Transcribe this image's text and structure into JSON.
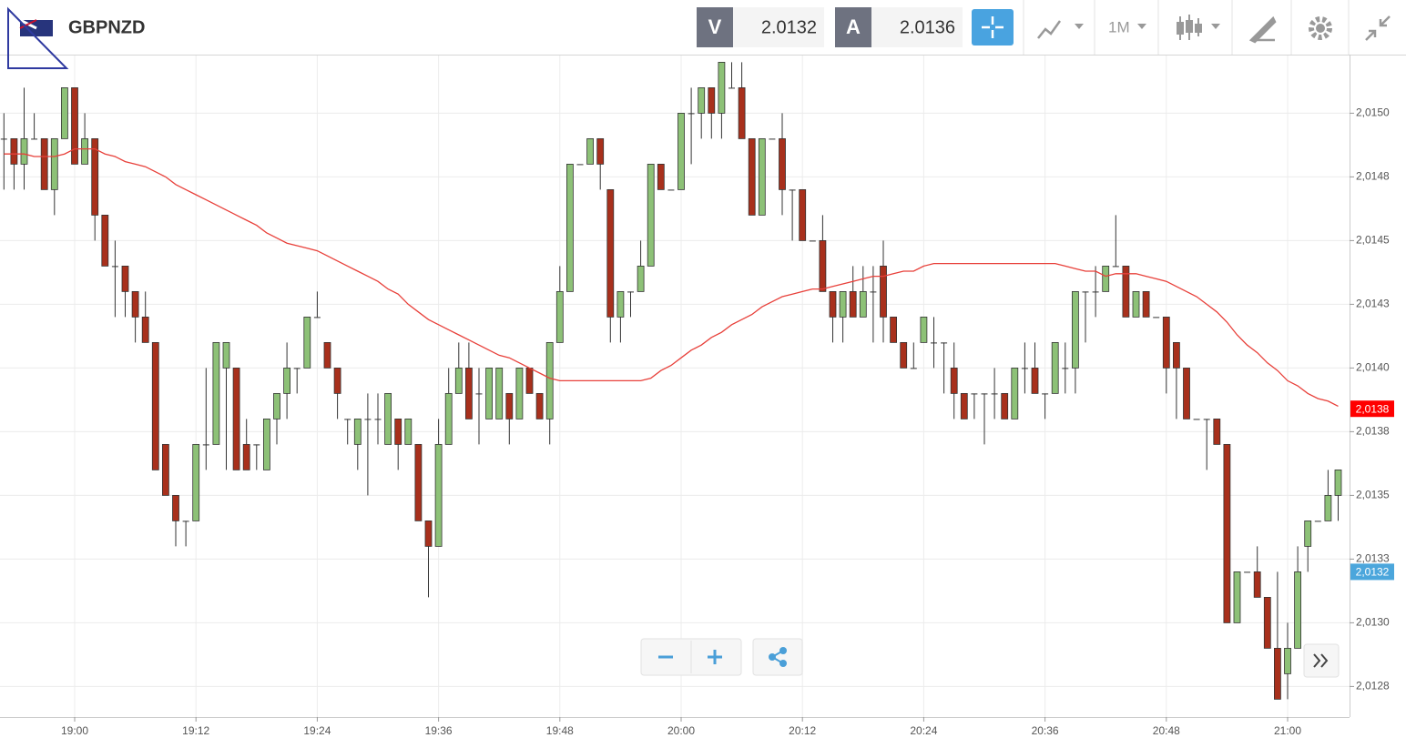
{
  "header": {
    "symbol": "GBPNZD",
    "bid_label": "V",
    "bid": "2.0132",
    "ask_label": "A",
    "ask": "2.0136",
    "timeframe": "1M"
  },
  "chart_data": {
    "type": "candlestick",
    "categories": [
      null,
      null,
      null,
      null,
      null,
      null,
      null,
      "19:00",
      null,
      null,
      null,
      null,
      null,
      null,
      null,
      null,
      null,
      null,
      null,
      "19:12",
      null,
      null,
      null,
      null,
      null,
      null,
      null,
      null,
      null,
      null,
      null,
      "19:24",
      null,
      null,
      null,
      null,
      null,
      null,
      null,
      null,
      null,
      null,
      null,
      "19:36",
      null,
      null,
      null,
      null,
      null,
      null,
      null,
      null,
      null,
      null,
      null,
      "19:48",
      null,
      null,
      null,
      null,
      null,
      null,
      null,
      null,
      null,
      null,
      null,
      "20:00",
      null,
      null,
      null,
      null,
      null,
      null,
      null,
      null,
      null,
      null,
      null,
      "20:12",
      null,
      null,
      null,
      null,
      null,
      null,
      null,
      null,
      null,
      null,
      null,
      "20:24",
      null,
      null,
      null,
      null,
      null,
      null,
      null,
      null,
      null,
      null,
      null,
      "20:36",
      null,
      null,
      null,
      null,
      null,
      null,
      null,
      null,
      null,
      null,
      null,
      "20:48",
      null,
      null,
      null,
      null,
      null,
      null,
      null,
      null,
      null,
      null,
      null,
      "21:00",
      null,
      null,
      null,
      null,
      null
    ],
    "open": [
      2.0149,
      2.0149,
      2.0148,
      2.0149,
      2.0149,
      2.0147,
      2.0149,
      2.0151,
      2.0148,
      2.0149,
      2.0146,
      2.0144,
      2.0144,
      2.0143,
      2.0142,
      2.0141,
      2.0137,
      2.0135,
      2.0134,
      2.0134,
      2.0137,
      2.0137,
      2.014,
      2.014,
      2.0137,
      2.0137,
      2.0136,
      2.0138,
      2.0139,
      2.014,
      2.014,
      2.0142,
      2.0141,
      2.014,
      2.0138,
      2.0137,
      2.0138,
      2.0138,
      2.0137,
      2.0138,
      2.0137,
      2.0137,
      2.0134,
      2.0133,
      2.0137,
      2.0139,
      2.014,
      2.0139,
      2.0138,
      2.0138,
      2.0139,
      2.0138,
      2.014,
      2.0139,
      2.0138,
      2.0141,
      2.0143,
      2.0148,
      2.0148,
      2.0149,
      2.0147,
      2.0142,
      2.0143,
      2.0143,
      2.0144,
      2.0148,
      2.0147,
      2.0147,
      2.015,
      2.015,
      2.0151,
      2.015,
      2.0151,
      2.0151,
      2.0149,
      2.0146,
      2.0149,
      2.0149,
      2.0147,
      2.0147,
      2.0145,
      2.0145,
      2.0143,
      2.0142,
      2.0143,
      2.0142,
      2.0143,
      2.0144,
      2.0142,
      2.0141,
      2.014,
      2.0141,
      2.0141,
      2.0141,
      2.014,
      2.0139,
      2.0139,
      2.0139,
      2.0139,
      2.0139,
      2.0138,
      2.014,
      2.014,
      2.0139,
      2.0139,
      2.014,
      2.014,
      2.0143,
      2.0143,
      2.0143,
      2.0144,
      2.0144,
      2.0142,
      2.0143,
      2.0142,
      2.0142,
      2.0141,
      2.014,
      2.0138,
      2.0138,
      2.0138,
      2.0137,
      2.013,
      2.0132,
      2.0132,
      2.0131,
      2.0129,
      2.0128,
      2.0129,
      2.0133,
      2.0134,
      2.0134,
      2.0135
    ],
    "high": [
      2.015,
      2.0149,
      2.0151,
      2.015,
      2.0149,
      2.0149,
      2.0151,
      2.0151,
      2.015,
      2.0149,
      2.0146,
      2.0145,
      2.0144,
      2.0143,
      2.0143,
      2.0141,
      2.0137,
      2.0135,
      2.0134,
      2.0137,
      2.014,
      2.0141,
      2.0141,
      2.014,
      2.0138,
      2.0137,
      2.0138,
      2.0139,
      2.0141,
      2.014,
      2.0142,
      2.0143,
      2.0141,
      2.014,
      2.0138,
      2.0138,
      2.0139,
      2.0139,
      2.0139,
      2.0138,
      2.0138,
      2.0137,
      2.0134,
      2.0138,
      2.014,
      2.0141,
      2.0141,
      2.014,
      2.014,
      2.014,
      2.0139,
      2.014,
      2.014,
      2.0139,
      2.0141,
      2.0144,
      2.0148,
      2.0148,
      2.0149,
      2.0149,
      2.0147,
      2.0143,
      2.0143,
      2.0145,
      2.0148,
      2.0148,
      2.0147,
      2.015,
      2.0151,
      2.0151,
      2.0151,
      2.0152,
      2.0152,
      2.0152,
      2.0149,
      2.0149,
      2.0149,
      2.015,
      2.0147,
      2.0147,
      2.0145,
      2.0146,
      2.0143,
      2.0143,
      2.0144,
      2.0144,
      2.0144,
      2.0145,
      2.0142,
      2.0141,
      2.0141,
      2.0142,
      2.0142,
      2.0141,
      2.0141,
      2.0139,
      2.0139,
      2.0139,
      2.014,
      2.0139,
      2.014,
      2.0141,
      2.0141,
      2.0139,
      2.0141,
      2.0141,
      2.0143,
      2.0143,
      2.0144,
      2.0144,
      2.0146,
      2.0144,
      2.0143,
      2.0143,
      2.0142,
      2.0142,
      2.0141,
      2.014,
      2.0138,
      2.0138,
      2.0138,
      2.0137,
      2.0132,
      2.0132,
      2.0133,
      2.0131,
      2.0132,
      2.013,
      2.0133,
      2.0134,
      2.0134,
      2.0136,
      2.0136
    ],
    "low": [
      2.0147,
      2.0147,
      2.0147,
      2.0149,
      2.0147,
      2.0146,
      2.0149,
      2.0148,
      2.0148,
      2.0145,
      2.0144,
      2.0142,
      2.0142,
      2.0141,
      2.0141,
      2.0136,
      2.0135,
      2.0133,
      2.0133,
      2.0134,
      2.0136,
      2.0137,
      2.0136,
      2.0136,
      2.0136,
      2.0136,
      2.0136,
      2.0137,
      2.0138,
      2.0139,
      2.014,
      2.0142,
      2.014,
      2.0138,
      2.0137,
      2.0136,
      2.0135,
      2.0137,
      2.0137,
      2.0136,
      2.0137,
      2.0134,
      2.0131,
      2.0133,
      2.0137,
      2.0139,
      2.0138,
      2.0137,
      2.0138,
      2.0138,
      2.0137,
      2.0138,
      2.0139,
      2.0138,
      2.0137,
      2.0141,
      2.0143,
      2.0148,
      2.0148,
      2.0147,
      2.0141,
      2.0141,
      2.0142,
      2.0143,
      2.0144,
      2.0147,
      2.0147,
      2.0147,
      2.0148,
      2.0149,
      2.0149,
      2.0149,
      2.0151,
      2.0149,
      2.0146,
      2.0146,
      2.0149,
      2.0146,
      2.0145,
      2.0145,
      2.0145,
      2.0143,
      2.0141,
      2.0141,
      2.0142,
      2.0142,
      2.0141,
      2.0141,
      2.0141,
      2.014,
      2.014,
      2.0141,
      2.014,
      2.0139,
      2.0138,
      2.0138,
      2.0138,
      2.0137,
      2.0138,
      2.0138,
      2.0138,
      2.0139,
      2.0139,
      2.0138,
      2.0139,
      2.0139,
      2.0139,
      2.0141,
      2.0142,
      2.0143,
      2.0144,
      2.0142,
      2.0142,
      2.0142,
      2.0142,
      2.0139,
      2.0138,
      2.0138,
      2.0138,
      2.0136,
      2.0137,
      2.013,
      2.013,
      2.0132,
      2.0131,
      2.0129,
      2.0127,
      2.0127,
      2.0129,
      2.0132,
      2.0134,
      2.0134,
      2.0134
    ],
    "close": [
      2.0149,
      2.0148,
      2.0149,
      2.0149,
      2.0147,
      2.0149,
      2.0151,
      2.0148,
      2.0149,
      2.0146,
      2.0144,
      2.0144,
      2.0143,
      2.0142,
      2.0141,
      2.0136,
      2.0135,
      2.0134,
      2.0134,
      2.0137,
      2.0137,
      2.0141,
      2.0141,
      2.0136,
      2.0136,
      2.0137,
      2.0138,
      2.0139,
      2.014,
      2.014,
      2.0142,
      2.0142,
      2.014,
      2.0139,
      2.0138,
      2.0138,
      2.0138,
      2.0138,
      2.0139,
      2.0137,
      2.0138,
      2.0134,
      2.0133,
      2.0137,
      2.0139,
      2.014,
      2.0138,
      2.0139,
      2.014,
      2.014,
      2.0138,
      2.014,
      2.0139,
      2.0138,
      2.0141,
      2.0143,
      2.0148,
      2.0148,
      2.0149,
      2.0148,
      2.0142,
      2.0143,
      2.0143,
      2.0144,
      2.0148,
      2.0147,
      2.0147,
      2.015,
      2.015,
      2.0151,
      2.015,
      2.0152,
      2.0151,
      2.0149,
      2.0146,
      2.0149,
      2.0149,
      2.0147,
      2.0147,
      2.0145,
      2.0145,
      2.0143,
      2.0142,
      2.0143,
      2.0142,
      2.0143,
      2.0143,
      2.0142,
      2.0141,
      2.014,
      2.014,
      2.0142,
      2.0141,
      2.0141,
      2.0139,
      2.0138,
      2.0139,
      2.0139,
      2.0139,
      2.0138,
      2.014,
      2.014,
      2.0139,
      2.0139,
      2.0141,
      2.014,
      2.0143,
      2.0143,
      2.0143,
      2.0144,
      2.0144,
      2.0142,
      2.0143,
      2.0142,
      2.0142,
      2.014,
      2.014,
      2.0138,
      2.0138,
      2.0138,
      2.0137,
      2.013,
      2.0132,
      2.0132,
      2.0131,
      2.0129,
      2.0127,
      2.0129,
      2.0132,
      2.0134,
      2.0134,
      2.0135,
      2.0136
    ],
    "up_color": "#8dc177",
    "down_color": "#a8301c",
    "ma": {
      "color": "#e8403a",
      "values": [
        2.01484,
        2.01484,
        2.01484,
        2.01483,
        2.01483,
        2.01483,
        2.01484,
        2.01486,
        2.01486,
        2.01486,
        2.01484,
        2.01483,
        2.01481,
        2.0148,
        2.01479,
        2.01477,
        2.01475,
        2.01472,
        2.0147,
        2.01468,
        2.01466,
        2.01464,
        2.01462,
        2.0146,
        2.01458,
        2.01456,
        2.01453,
        2.01451,
        2.01449,
        2.01448,
        2.01447,
        2.01446,
        2.01444,
        2.01442,
        2.0144,
        2.01438,
        2.01436,
        2.01434,
        2.01431,
        2.01429,
        2.01425,
        2.01422,
        2.01419,
        2.01417,
        2.01415,
        2.01413,
        2.01411,
        2.01409,
        2.01407,
        2.01405,
        2.01404,
        2.01402,
        2.014,
        2.01398,
        2.01396,
        2.01395,
        2.01395,
        2.01395,
        2.01395,
        2.01395,
        2.01395,
        2.01395,
        2.01395,
        2.01395,
        2.01396,
        2.01399,
        2.01401,
        2.01404,
        2.01407,
        2.01409,
        2.01412,
        2.01414,
        2.01417,
        2.01419,
        2.01421,
        2.01424,
        2.01426,
        2.01428,
        2.01429,
        2.0143,
        2.01431,
        2.01431,
        2.01432,
        2.01433,
        2.01434,
        2.01435,
        2.01436,
        2.01436,
        2.01437,
        2.01438,
        2.01438,
        2.0144,
        2.01441,
        2.01441,
        2.01441,
        2.01441,
        2.01441,
        2.01441,
        2.01441,
        2.01441,
        2.01441,
        2.01441,
        2.01441,
        2.01441,
        2.01441,
        2.0144,
        2.01439,
        2.01438,
        2.01438,
        2.01436,
        2.01437,
        2.01437,
        2.01437,
        2.01436,
        2.01435,
        2.01434,
        2.01432,
        2.0143,
        2.01428,
        2.01425,
        2.01422,
        2.01418,
        2.01413,
        2.01409,
        2.01406,
        2.01402,
        2.01399,
        2.01395,
        2.01393,
        2.0139,
        2.01388,
        2.01387,
        2.01385
      ]
    },
    "ylim": [
      2.01263,
      2.01523
    ],
    "yticks": [
      {
        "value": 2.015,
        "label": "2,0150"
      },
      {
        "value": 2.01475,
        "label": "2,0148"
      },
      {
        "value": 2.0145,
        "label": "2,0145"
      },
      {
        "value": 2.01425,
        "label": "2,0143"
      },
      {
        "value": 2.014,
        "label": "2,0140"
      },
      {
        "value": 2.01375,
        "label": "2,0138"
      },
      {
        "value": 2.0135,
        "label": "2,0135"
      },
      {
        "value": 2.01325,
        "label": "2,0133"
      },
      {
        "value": 2.013,
        "label": "2,0130"
      },
      {
        "value": 2.01275,
        "label": "2,0128"
      }
    ],
    "price_tags": [
      {
        "value": 2.01384,
        "label": "2,0138",
        "color": "#ff0000"
      },
      {
        "value": 2.0132,
        "label": "2,0132",
        "color": "#4ba6dc"
      }
    ],
    "grid": true
  }
}
